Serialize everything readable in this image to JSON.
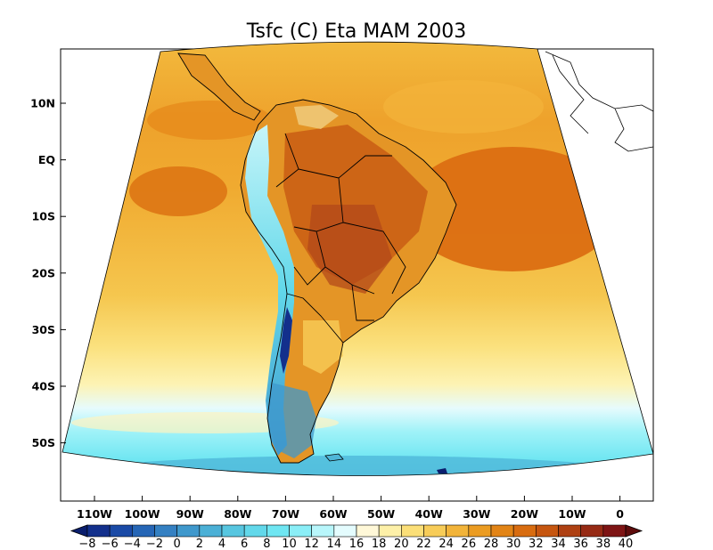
{
  "title": "Tsfc (C) Eta MAM 2003",
  "map": {
    "lat_labels": [
      "10N",
      "EQ",
      "10S",
      "20S",
      "30S",
      "40S",
      "50S"
    ],
    "lon_labels": [
      "110W",
      "100W",
      "90W",
      "80W",
      "70W",
      "60W",
      "50W",
      "40W",
      "30W",
      "20W",
      "10W",
      "0"
    ]
  },
  "colorbar": {
    "labels": [
      "−8",
      "−6",
      "−4",
      "−2",
      "0",
      "2",
      "4",
      "6",
      "8",
      "10",
      "12",
      "14",
      "16",
      "18",
      "20",
      "22",
      "24",
      "26",
      "28",
      "30",
      "32",
      "34",
      "36",
      "38",
      "40"
    ],
    "colors": [
      "#0a1e6e",
      "#13308c",
      "#1a4aa6",
      "#2666b6",
      "#3480c2",
      "#3f98cc",
      "#4bb0d6",
      "#57c6e0",
      "#62d8ea",
      "#6fe6f2",
      "#8aeef7",
      "#b8f6fb",
      "#e4fcfe",
      "#fff8d8",
      "#fdf0a8",
      "#fbdf78",
      "#f7cc58",
      "#f2b43a",
      "#eb9c22",
      "#e28416",
      "#d86c10",
      "#c65610",
      "#ae4012",
      "#962a14",
      "#7e1414",
      "#5e0c0c"
    ]
  }
}
